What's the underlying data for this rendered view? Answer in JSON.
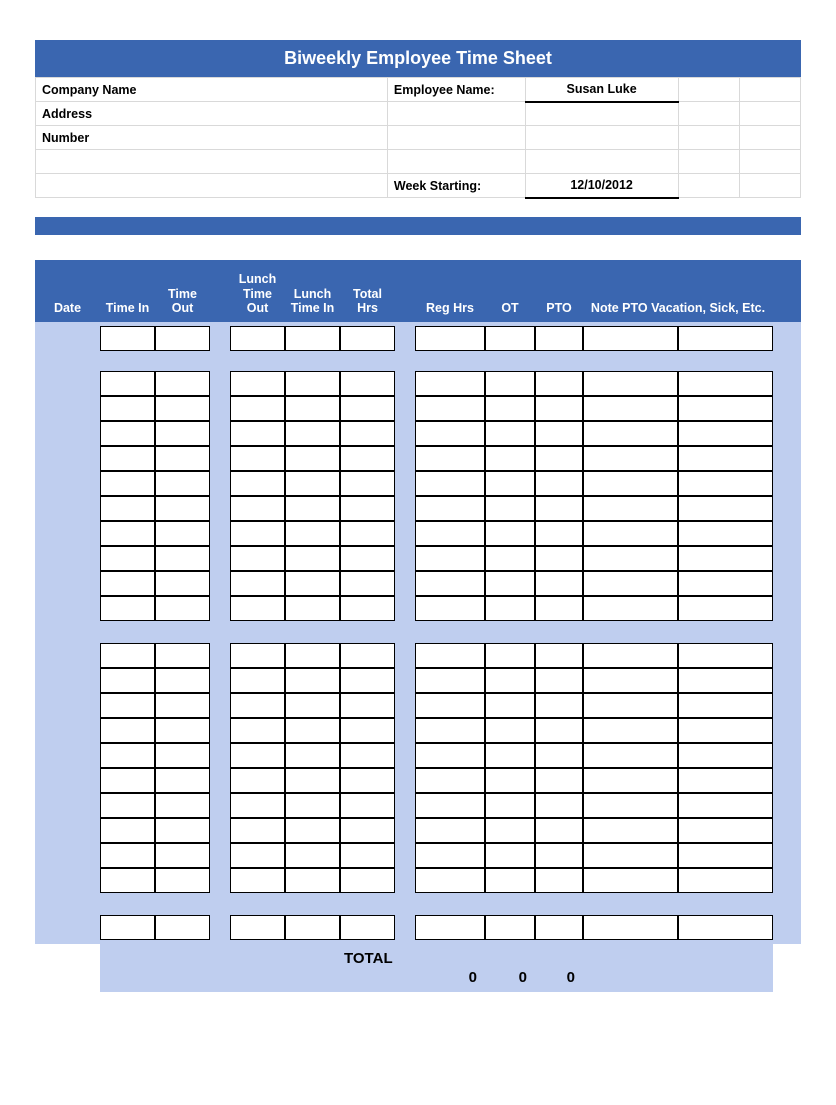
{
  "title": "Biweekly Employee Time Sheet",
  "info": {
    "company_label": "Company Name",
    "employee_label": "Employee Name:",
    "employee_value": "Susan Luke",
    "address_label": "Address",
    "number_label": "Number",
    "week_start_label": "Week Starting:",
    "week_start_value": "12/10/2012"
  },
  "columns": {
    "date": "Date",
    "time_in": "Time In",
    "time_out": "Time Out",
    "lunch_out": "Lunch Time Out",
    "lunch_in": "Lunch Time In",
    "total_hrs": "Total Hrs",
    "reg_hrs": "Reg Hrs",
    "ot": "OT",
    "pto": "PTO",
    "note": "Note PTO Vacation, Sick, Etc."
  },
  "blocks": {
    "a_rows": 1,
    "b_rows": 10,
    "c_rows": 10,
    "d_rows": 1
  },
  "totals": {
    "label": "TOTAL",
    "reg": "0",
    "ot": "0",
    "pto": "0"
  },
  "colors": {
    "header_blue": "#3a66b0",
    "light_blue": "#bfceef",
    "grid_border": "#000000",
    "info_border": "#d9d9d9"
  }
}
